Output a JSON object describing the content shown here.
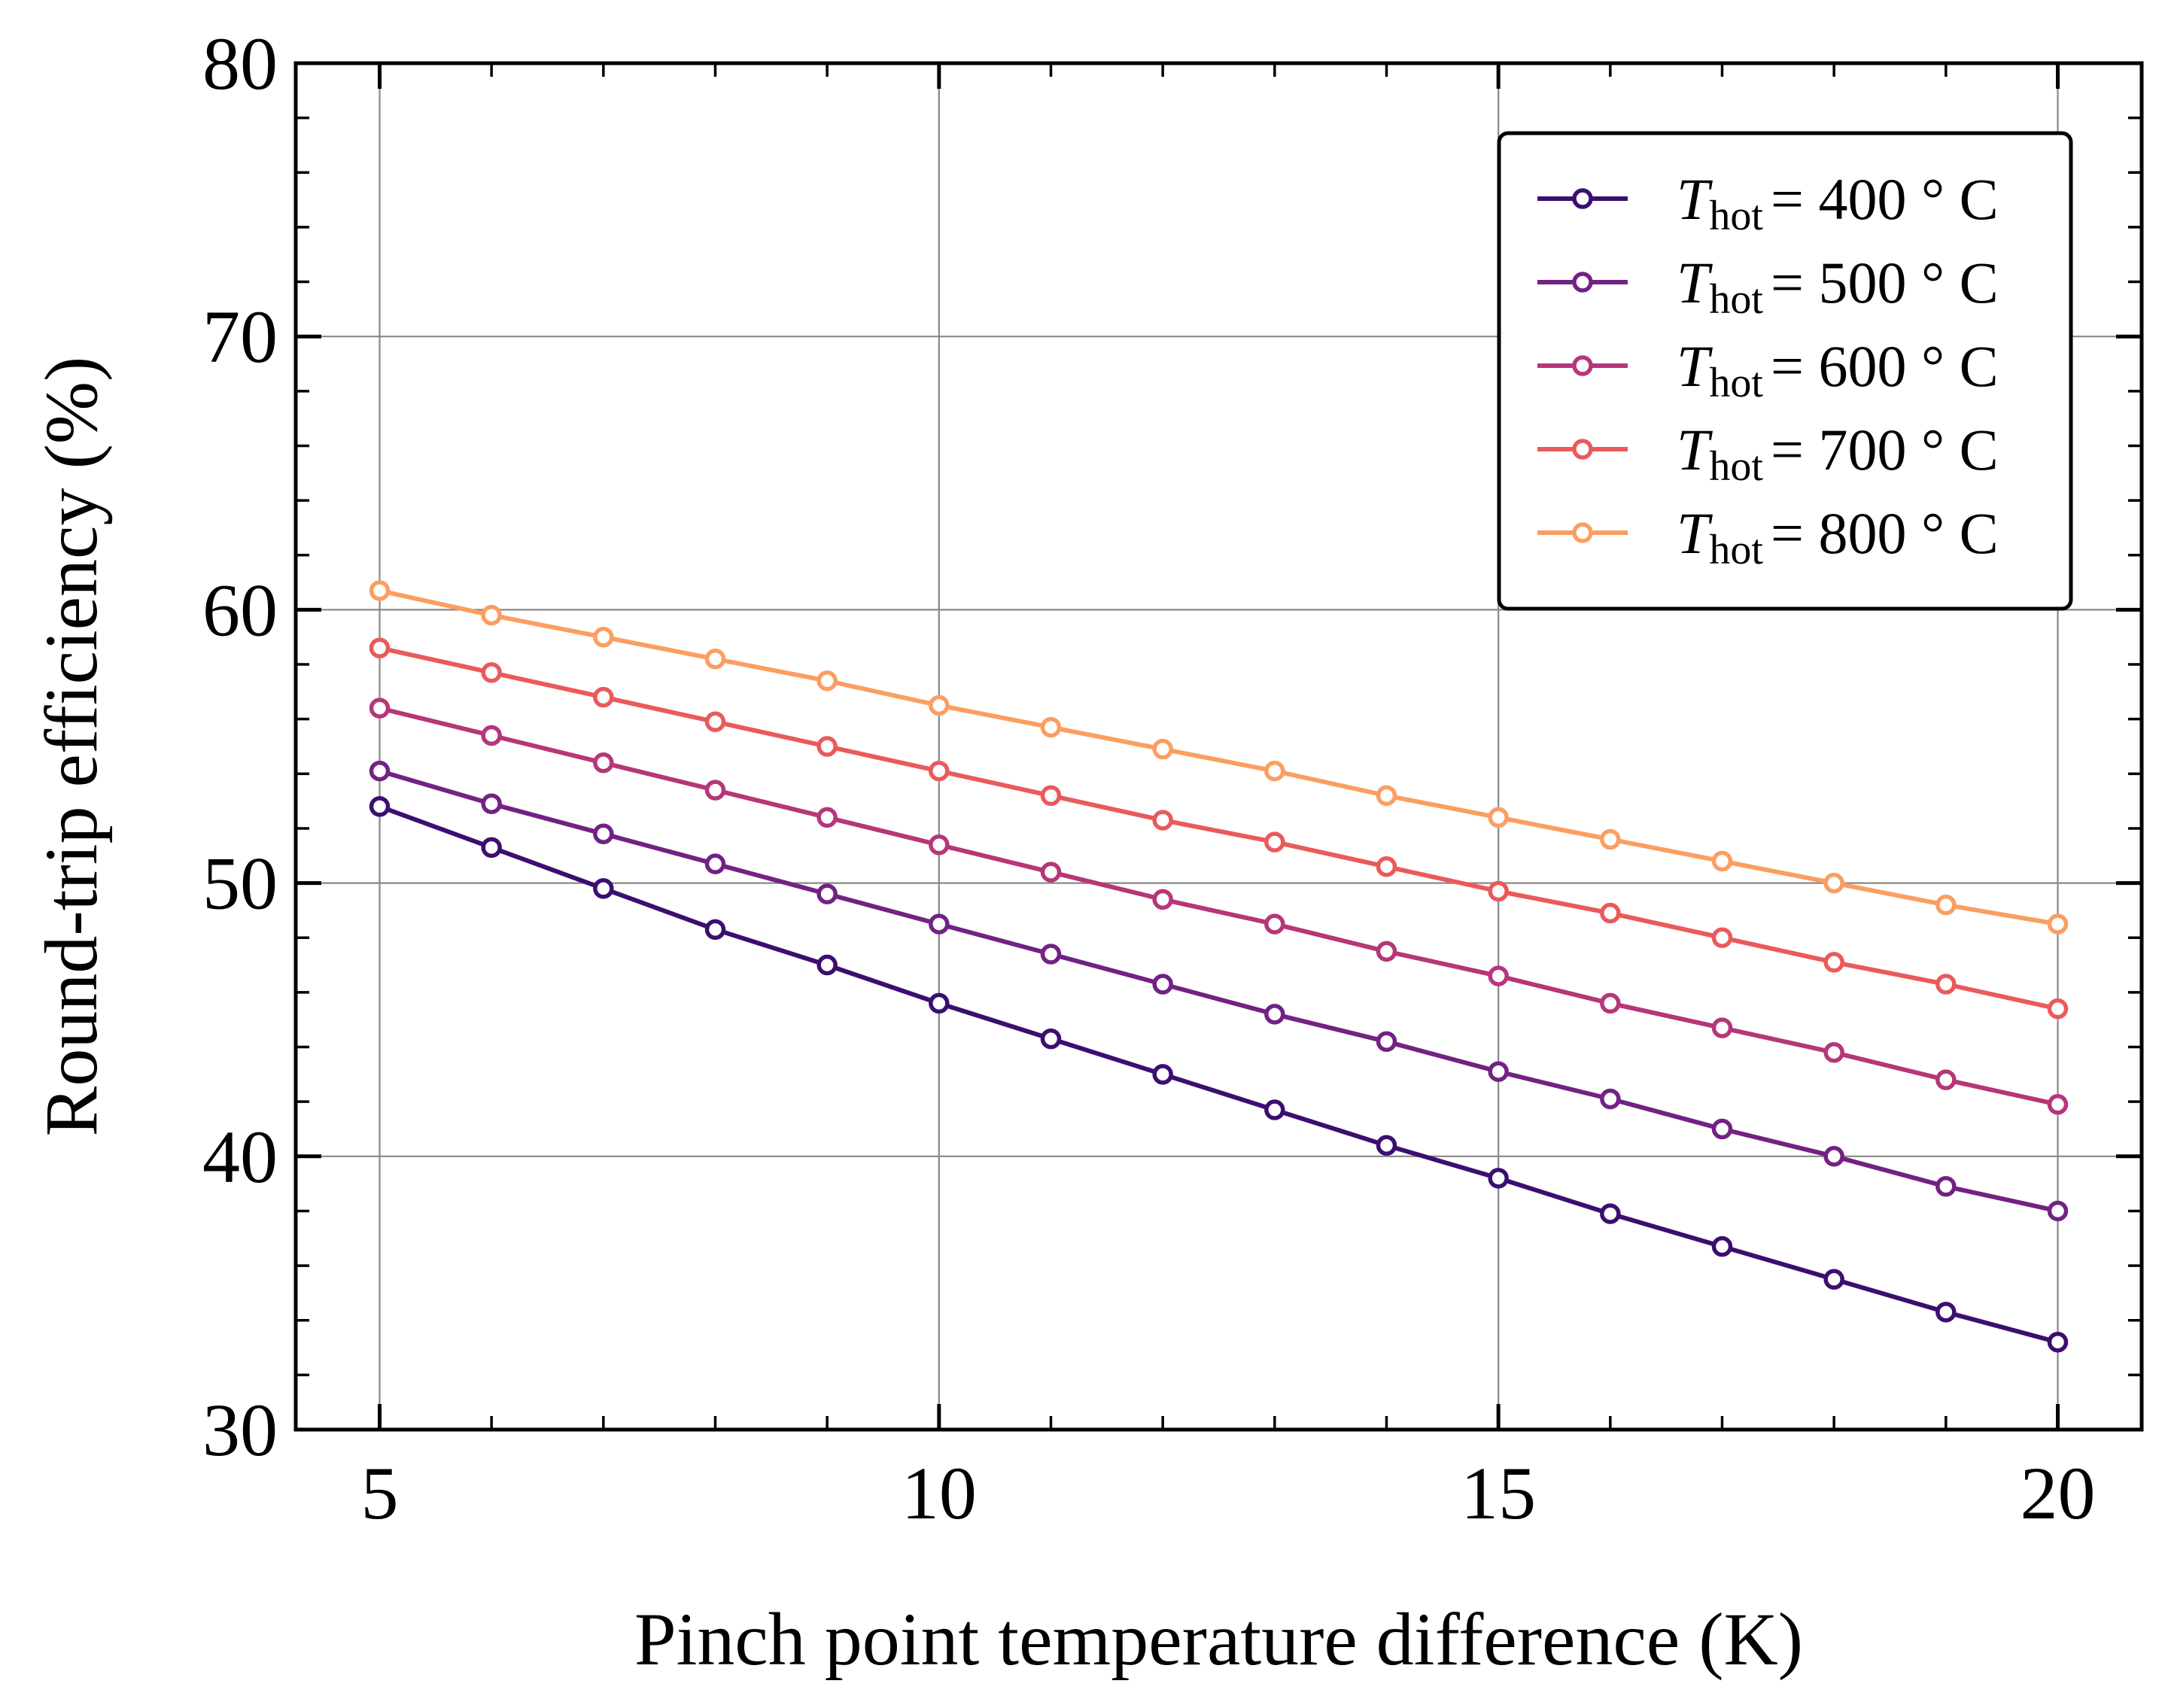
{
  "chart_data": {
    "type": "line",
    "title": "",
    "xlabel": "Pinch point temperature difference (K)",
    "ylabel": "Round-trip efficiency (%)",
    "xlim": [
      4.25,
      20.75
    ],
    "ylim": [
      30,
      80
    ],
    "xticks": [
      5,
      10,
      15,
      20
    ],
    "yticks": [
      30,
      40,
      50,
      60,
      70,
      80
    ],
    "grid": true,
    "legend_position": "top-right",
    "marker": "open-circle",
    "x": [
      5,
      6,
      7,
      8,
      9,
      10,
      11,
      12,
      13,
      14,
      15,
      16,
      17,
      18,
      19,
      20
    ],
    "series": [
      {
        "name_symbol": "T",
        "name_sub": "hot",
        "name_value": "= 400 ° C",
        "color": "#3b0f70",
        "values": [
          52.8,
          51.3,
          49.8,
          48.3,
          47.0,
          45.6,
          44.3,
          43.0,
          41.7,
          40.4,
          39.2,
          37.9,
          36.7,
          35.5,
          34.3,
          33.2
        ]
      },
      {
        "name_symbol": "T",
        "name_sub": "hot",
        "name_value": "= 500 ° C",
        "color": "#722283",
        "values": [
          54.1,
          52.9,
          51.8,
          50.7,
          49.6,
          48.5,
          47.4,
          46.3,
          45.2,
          44.2,
          43.1,
          42.1,
          41.0,
          40.0,
          38.9,
          38.0
        ]
      },
      {
        "name_symbol": "T",
        "name_sub": "hot",
        "name_value": "= 600 ° C",
        "color": "#b63679",
        "values": [
          56.4,
          55.4,
          54.4,
          53.4,
          52.4,
          51.4,
          50.4,
          49.4,
          48.5,
          47.5,
          46.6,
          45.6,
          44.7,
          43.8,
          42.8,
          41.9
        ]
      },
      {
        "name_symbol": "T",
        "name_sub": "hot",
        "name_value": "= 700 ° C",
        "color": "#ea5a5a",
        "values": [
          58.6,
          57.7,
          56.8,
          55.9,
          55.0,
          54.1,
          53.2,
          52.3,
          51.5,
          50.6,
          49.7,
          48.9,
          48.0,
          47.1,
          46.3,
          45.4
        ]
      },
      {
        "name_symbol": "T",
        "name_sub": "hot",
        "name_value": "= 800 ° C",
        "color": "#fb9e62",
        "values": [
          60.7,
          59.8,
          59.0,
          58.2,
          57.4,
          56.5,
          55.7,
          54.9,
          54.1,
          53.2,
          52.4,
          51.6,
          50.8,
          50.0,
          49.2,
          48.5
        ]
      }
    ]
  }
}
